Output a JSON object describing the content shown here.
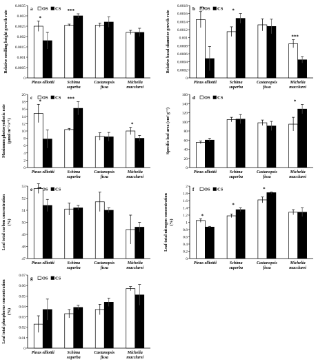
{
  "legend": [
    "OS",
    "CS"
  ],
  "colors": {
    "OS": "#ffffff",
    "CS": "#000000",
    "stroke": "#000000"
  },
  "chart_data": [
    {
      "panel": "a",
      "type": "bar",
      "ylabel": "Relative seedling height growth rate",
      "categories": [
        [
          "Pinus elliottii"
        ],
        [
          "Schima",
          "superba"
        ],
        [
          "Castanopsis",
          "fissa"
        ],
        [
          "Michelia",
          "macclurei"
        ]
      ],
      "series": [
        {
          "name": "OS",
          "values": [
            0.0025,
            0.00255,
            0.00255,
            0.0022
          ],
          "errors": [
            0.00025,
            5e-05,
            0.0001,
            0.0001
          ]
        },
        {
          "name": "CS",
          "values": [
            0.0018,
            0.003,
            0.0027,
            0.0022
          ],
          "errors": [
            0.0004,
            0.0001,
            0.00025,
            0.0002
          ]
        }
      ],
      "significance": [
        "*",
        "***",
        "",
        ""
      ],
      "ylim": [
        0,
        0.0035
      ],
      "yticks": [
        "0",
        "0.0005",
        "0.001",
        "0.0015",
        "0.002",
        "0.0025",
        "0.003",
        "0.0035"
      ],
      "legend_placement": "top-left"
    },
    {
      "panel": "b",
      "type": "bar",
      "ylabel": "Relative basal diameter growth rate",
      "categories": [
        [
          "Pinus elliottii"
        ],
        [
          "Schima",
          "superba"
        ],
        [
          "Castanopsis",
          "fissa"
        ],
        [
          "Michelia",
          "macclurei"
        ]
      ],
      "series": [
        {
          "name": "OS",
          "values": [
            0.00145,
            0.00115,
            0.00132,
            0.00085
          ],
          "errors": [
            0.0002,
            0.00012,
            0.00015,
            0.0001
          ]
        },
        {
          "name": "CS",
          "values": [
            0.00048,
            0.00148,
            0.00128,
            0.00045
          ],
          "errors": [
            0.0003,
            0.00012,
            0.00018,
            8e-05
          ]
        }
      ],
      "significance": [
        "**",
        "*",
        "",
        "***"
      ],
      "ylim": [
        0,
        0.0018
      ],
      "yticks": [
        "0",
        "0.0002",
        "0.0004",
        "0.0006",
        "0.0008",
        "0.001",
        "0.0012",
        "0.0014",
        "0.0016",
        "0.0018"
      ],
      "legend_placement": "top-left"
    },
    {
      "panel": "c",
      "type": "bar",
      "ylabel": [
        "Maximum photosynthetic rate",
        "(μmol m⁻² s⁻¹)"
      ],
      "categories": [
        [
          "Pinus elliottii"
        ],
        [
          "Schima",
          "superba"
        ],
        [
          "Castanopsis",
          "fissa"
        ],
        [
          "Michelia",
          "macclurei"
        ]
      ],
      "series": [
        {
          "name": "OS",
          "values": [
            14.8,
            10.4,
            8.5,
            10
          ],
          "errors": [
            2.5,
            0.3,
            1.0,
            1.0
          ]
        },
        {
          "name": "CS",
          "values": [
            7.8,
            16.2,
            8.4,
            8
          ],
          "errors": [
            2.5,
            1.8,
            1.2,
            0.8
          ]
        }
      ],
      "significance": [
        "*",
        "***",
        "",
        "*"
      ],
      "ylim": [
        0,
        20
      ],
      "yticks": [
        "0",
        "2",
        "4",
        "6",
        "8",
        "10",
        "12",
        "14",
        "16",
        "18",
        "20"
      ],
      "legend_placement": "top-left"
    },
    {
      "panel": "d",
      "type": "bar",
      "ylabel": [
        "Specific leaf area (cm² g⁻¹)"
      ],
      "categories": [
        [
          "Pinus elliottii"
        ],
        [
          "Schima",
          "superba"
        ],
        [
          "Castanopsis",
          "fissa"
        ],
        [
          "Michelia",
          "macclurei"
        ]
      ],
      "series": [
        {
          "name": "OS",
          "values": [
            55,
            105,
            98,
            95
          ],
          "errors": [
            3,
            5,
            6,
            15
          ]
        },
        {
          "name": "CS",
          "values": [
            60,
            106,
            91,
            128
          ],
          "errors": [
            4,
            10,
            10,
            10
          ]
        }
      ],
      "significance": [
        "",
        "",
        "",
        "*"
      ],
      "ylim": [
        0,
        160
      ],
      "yticks": [
        "0",
        "20",
        "40",
        "60",
        "80",
        "100",
        "120",
        "140",
        "160"
      ],
      "legend_placement": "top-left"
    },
    {
      "panel": "e",
      "type": "bar",
      "ylabel": [
        "Leaf total carbon concentration",
        "(%)"
      ],
      "categories": [
        [
          "Pinus elliottii"
        ],
        [
          "Schima",
          "superba"
        ],
        [
          "Castanopsis",
          "fissa"
        ],
        [
          "Michelia",
          "macclurei"
        ]
      ],
      "series": [
        {
          "name": "OS",
          "values": [
            52.8,
            51.1,
            51.7,
            49.4
          ],
          "errors": [
            0.4,
            0.5,
            0.8,
            1.2
          ]
        },
        {
          "name": "CS",
          "values": [
            51.4,
            51.2,
            51.0,
            49.6
          ],
          "errors": [
            0.5,
            0.2,
            0.2,
            0.4
          ]
        }
      ],
      "significance": [
        "*",
        "",
        "",
        ""
      ],
      "ylim": [
        47,
        53
      ],
      "yticks": [
        "47",
        "48",
        "49",
        "50",
        "51",
        "52",
        "53"
      ],
      "legend_placement": "top-left"
    },
    {
      "panel": "f",
      "type": "bar",
      "ylabel": [
        "Leaf total nitrogen concentration",
        "(%)"
      ],
      "categories": [
        [
          "Pinus elliottii"
        ],
        [
          "Schima",
          "superba"
        ],
        [
          "Castanopsis",
          "fissa"
        ],
        [
          "Michelia",
          "macclurei"
        ]
      ],
      "series": [
        {
          "name": "OS",
          "values": [
            1.05,
            1.18,
            1.62,
            1.28
          ],
          "errors": [
            0.05,
            0.05,
            0.08,
            0.07
          ]
        },
        {
          "name": "CS",
          "values": [
            0.87,
            1.35,
            1.82,
            1.28
          ],
          "errors": [
            0.02,
            0.05,
            0.02,
            0.12
          ]
        }
      ],
      "significance": [
        "*",
        "*",
        "*",
        ""
      ],
      "ylim": [
        0,
        2
      ],
      "yticks": [
        "0",
        "0.2",
        "0.4",
        "0.6",
        "0.8",
        "1",
        "1.2",
        "1.4",
        "1.6",
        "1.8",
        "2"
      ],
      "legend_placement": "top-left"
    },
    {
      "panel": "g",
      "type": "bar",
      "ylabel": [
        "Leaf total phosphorus concentration",
        "(%)"
      ],
      "categories": [
        [
          "Pinus elliottii"
        ],
        [
          "Schima",
          "superba"
        ],
        [
          "Castanopsis",
          "fissa"
        ],
        [
          "Michelia",
          "macclurei"
        ]
      ],
      "series": [
        {
          "name": "OS",
          "values": [
            0.023,
            0.033,
            0.037,
            0.057
          ],
          "errors": [
            0.008,
            0.004,
            0.005,
            0.002
          ]
        },
        {
          "name": "CS",
          "values": [
            0.037,
            0.039,
            0.044,
            0.051
          ],
          "errors": [
            0.01,
            0.002,
            0.004,
            0.01
          ]
        }
      ],
      "significance": [
        "",
        "",
        "",
        ""
      ],
      "ylim": [
        0,
        0.07
      ],
      "yticks": [
        "0",
        "0.01",
        "0.02",
        "0.03",
        "0.04",
        "0.05",
        "0.06",
        "0.07"
      ],
      "legend_placement": "top-left"
    }
  ]
}
